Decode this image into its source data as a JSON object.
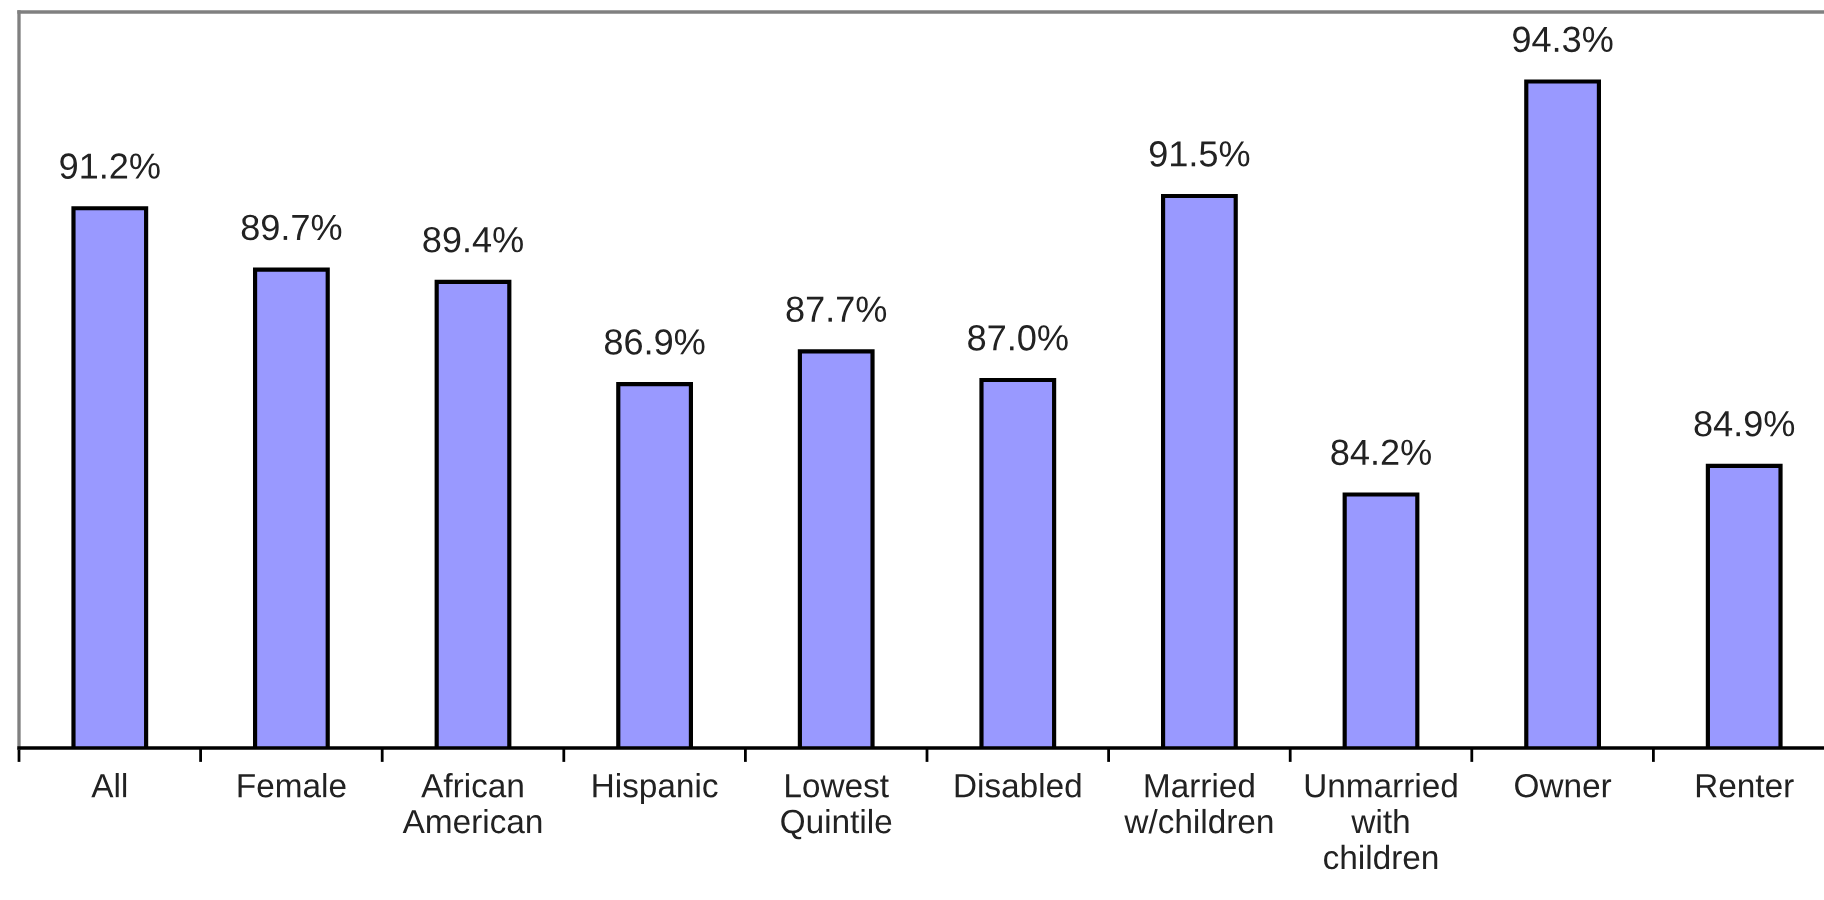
{
  "chart_data": {
    "type": "bar",
    "categories": [
      "All",
      "Female",
      "African\nAmerican",
      "Hispanic",
      "Lowest\nQuintile",
      "Disabled",
      "Married\nw/children",
      "Unmarried\nwith\nchildren",
      "Owner",
      "Renter"
    ],
    "values": [
      91.2,
      89.7,
      89.4,
      86.9,
      87.7,
      87.0,
      91.5,
      84.2,
      94.3,
      84.9
    ],
    "value_labels": [
      "91.2%",
      "89.7%",
      "89.4%",
      "86.9%",
      "87.7%",
      "87.0%",
      "91.5%",
      "84.2%",
      "94.3%",
      "84.9%"
    ],
    "color": "#9999ff",
    "ylim": [
      78,
      96
    ],
    "tick_labels": "x"
  }
}
